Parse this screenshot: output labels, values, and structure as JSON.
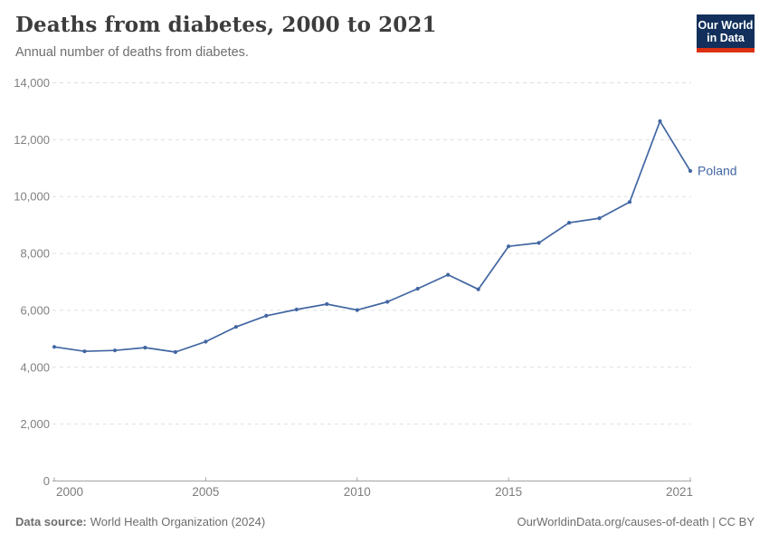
{
  "header": {
    "title": "Deaths from diabetes, 2000 to 2021",
    "subtitle": "Annual number of deaths from diabetes.",
    "logo": {
      "line1": "Our World",
      "line2": "in Data"
    }
  },
  "chart_data": {
    "type": "line",
    "title": "Deaths from diabetes, 2000 to 2021",
    "xlabel": "",
    "ylabel": "Annual number of deaths",
    "entity": "Poland",
    "x": [
      2000,
      2001,
      2002,
      2003,
      2004,
      2005,
      2006,
      2007,
      2008,
      2009,
      2010,
      2011,
      2012,
      2013,
      2014,
      2015,
      2016,
      2017,
      2018,
      2019,
      2020,
      2021
    ],
    "series": [
      {
        "name": "Poland",
        "values": [
          4715,
          4560,
          4590,
          4690,
          4535,
          4900,
          5420,
          5810,
          6030,
          6220,
          6010,
          6300,
          6760,
          7250,
          6740,
          8250,
          8370,
          9080,
          9240,
          9810,
          12650,
          10900
        ]
      }
    ],
    "ylim": [
      0,
      14000
    ],
    "ytick_step": 2000,
    "xticks": [
      2000,
      2005,
      2010,
      2015,
      2021
    ],
    "grid": "horizontal-dashed",
    "legend_position": "end-of-line-label"
  },
  "colors": {
    "line": "#4266a2",
    "gridline": "#e0e0e0",
    "axis": "#a3a3a3",
    "tick_label": "#7d7d7d",
    "y_label": "#808080",
    "entity_label": "#4266a2",
    "logo_bg": "#12305b",
    "logo_stripe": "#dc3012"
  },
  "footer": {
    "source_label": "Data source:",
    "source_value": "World Health Organization (2024)",
    "license": "OurWorldinData.org/causes-of-death | CC BY"
  }
}
